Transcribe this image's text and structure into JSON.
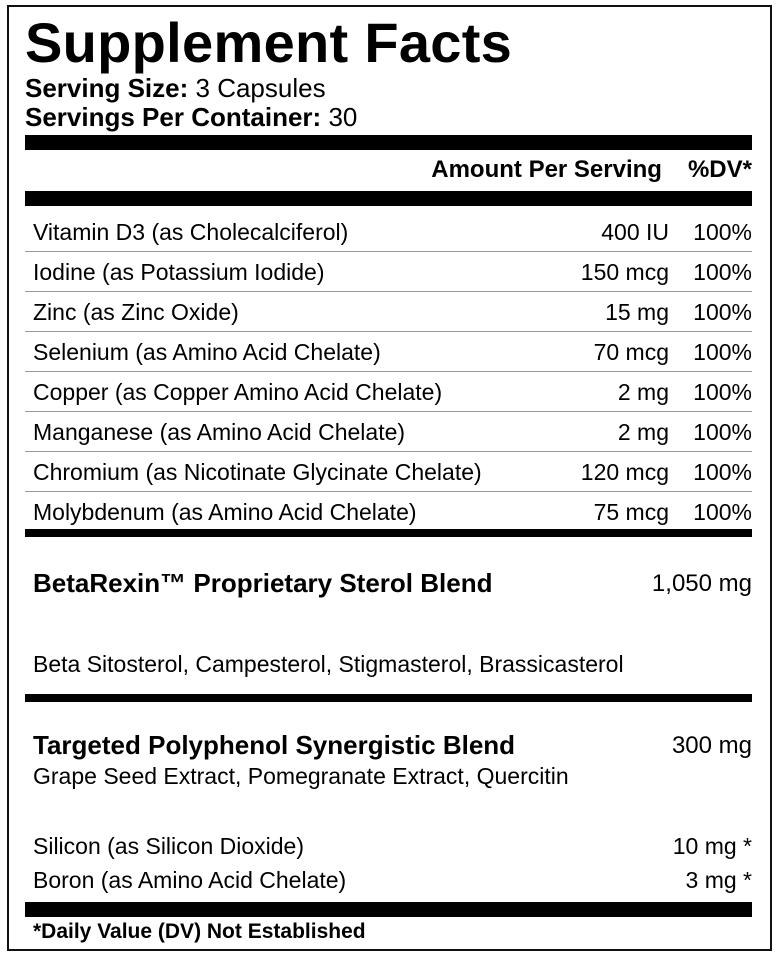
{
  "title": "Supplement Facts",
  "serving_size": {
    "label": "Serving Size:",
    "value": "3 Capsules"
  },
  "servings_per_container": {
    "label": "Servings Per Container:",
    "value": "30"
  },
  "columns": {
    "amount": "Amount Per Serving",
    "dv": "%DV*"
  },
  "nutrients": [
    {
      "name": "Vitamin D3 (as Cholecalciferol)",
      "amount": "400 IU",
      "dv": "100%"
    },
    {
      "name": "Iodine (as Potassium Iodide)",
      "amount": "150 mcg",
      "dv": "100%"
    },
    {
      "name": "Zinc (as Zinc Oxide)",
      "amount": "15 mg",
      "dv": "100%"
    },
    {
      "name": "Selenium (as Amino Acid Chelate)",
      "amount": "70 mcg",
      "dv": "100%"
    },
    {
      "name": "Copper (as Copper Amino Acid Chelate)",
      "amount": "2 mg",
      "dv": "100%"
    },
    {
      "name": "Manganese (as Amino Acid Chelate)",
      "amount": "2 mg",
      "dv": "100%"
    },
    {
      "name": "Chromium (as Nicotinate Glycinate Chelate)",
      "amount": "120 mcg",
      "dv": "100%"
    },
    {
      "name": "Molybdenum (as Amino Acid Chelate)",
      "amount": "75 mcg",
      "dv": "100%"
    }
  ],
  "blend1": {
    "name": "BetaRexin™ Proprietary Sterol Blend",
    "amount": "1,050 mg",
    "ingredients": "Beta Sitosterol, Campesterol, Stigmasterol, Brassicasterol"
  },
  "blend2": {
    "name": "Targeted Polyphenol Synergistic Blend",
    "amount": "300 mg",
    "ingredients": "Grape Seed Extract, Pomegranate Extract, Quercitin"
  },
  "other": [
    {
      "name": "Silicon (as Silicon Dioxide)",
      "amount": "10 mg *"
    },
    {
      "name": "Boron (as Amino Acid Chelate)",
      "amount": "3 mg *"
    }
  ],
  "footnote": "*Daily Value (DV) Not Established"
}
